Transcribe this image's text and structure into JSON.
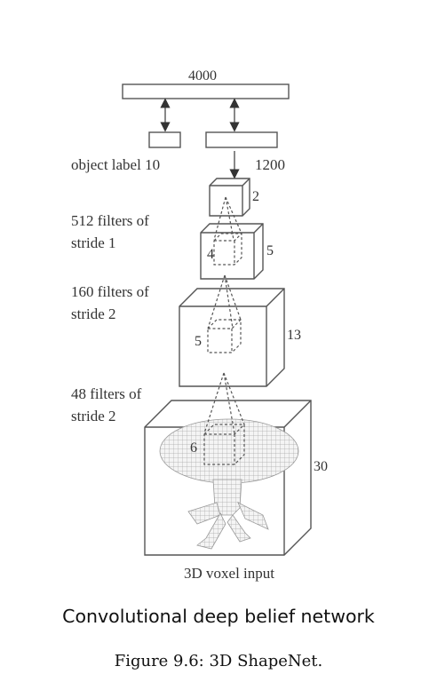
{
  "diagram": {
    "top_layer": "4000",
    "label_layer": "object label 10",
    "hidden_layer": "1200",
    "layers": [
      {
        "filters": "512 filters of",
        "stride": "stride 1",
        "kernel": "4",
        "size": "5",
        "top_size": "2"
      },
      {
        "filters": "160 filters of",
        "stride": "stride 2",
        "kernel": "5",
        "size": "13"
      },
      {
        "filters": "48 filters of",
        "stride": "stride 2",
        "kernel": "6",
        "size": "30"
      }
    ],
    "input_label": "3D voxel input"
  },
  "captions": {
    "network": "Convolutional deep belief network",
    "figure": "Figure 9.6: 3D ShapeNet."
  }
}
